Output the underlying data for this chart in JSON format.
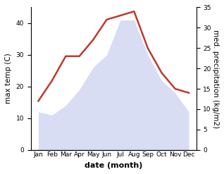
{
  "months": [
    "Jan",
    "Feb",
    "Mar",
    "Apr",
    "May",
    "Jun",
    "Jul",
    "Aug",
    "Sep",
    "Oct",
    "Nov",
    "Dec"
  ],
  "max_temp": [
    12,
    11,
    14,
    19,
    26,
    30,
    41,
    41,
    30,
    22,
    18,
    12
  ],
  "med_precip": [
    12,
    17,
    23,
    23,
    27,
    32,
    33,
    34,
    25,
    19,
    15,
    14
  ],
  "fill_color": "#aab4e8",
  "fill_alpha": 0.45,
  "precip_color": "#c0392b",
  "left_ylabel": "max temp (C)",
  "right_ylabel": "med. precipitation (kg/m2)",
  "xlabel": "date (month)",
  "left_ylim": [
    0,
    45
  ],
  "right_ylim": [
    0,
    35
  ],
  "left_yticks": [
    0,
    10,
    20,
    30,
    40
  ],
  "right_yticks": [
    0,
    5,
    10,
    15,
    20,
    25,
    30,
    35
  ],
  "background_color": "#ffffff",
  "axis_fontsize": 7.5,
  "tick_fontsize": 6.5,
  "xlabel_fontsize": 8,
  "linewidth": 1.8
}
